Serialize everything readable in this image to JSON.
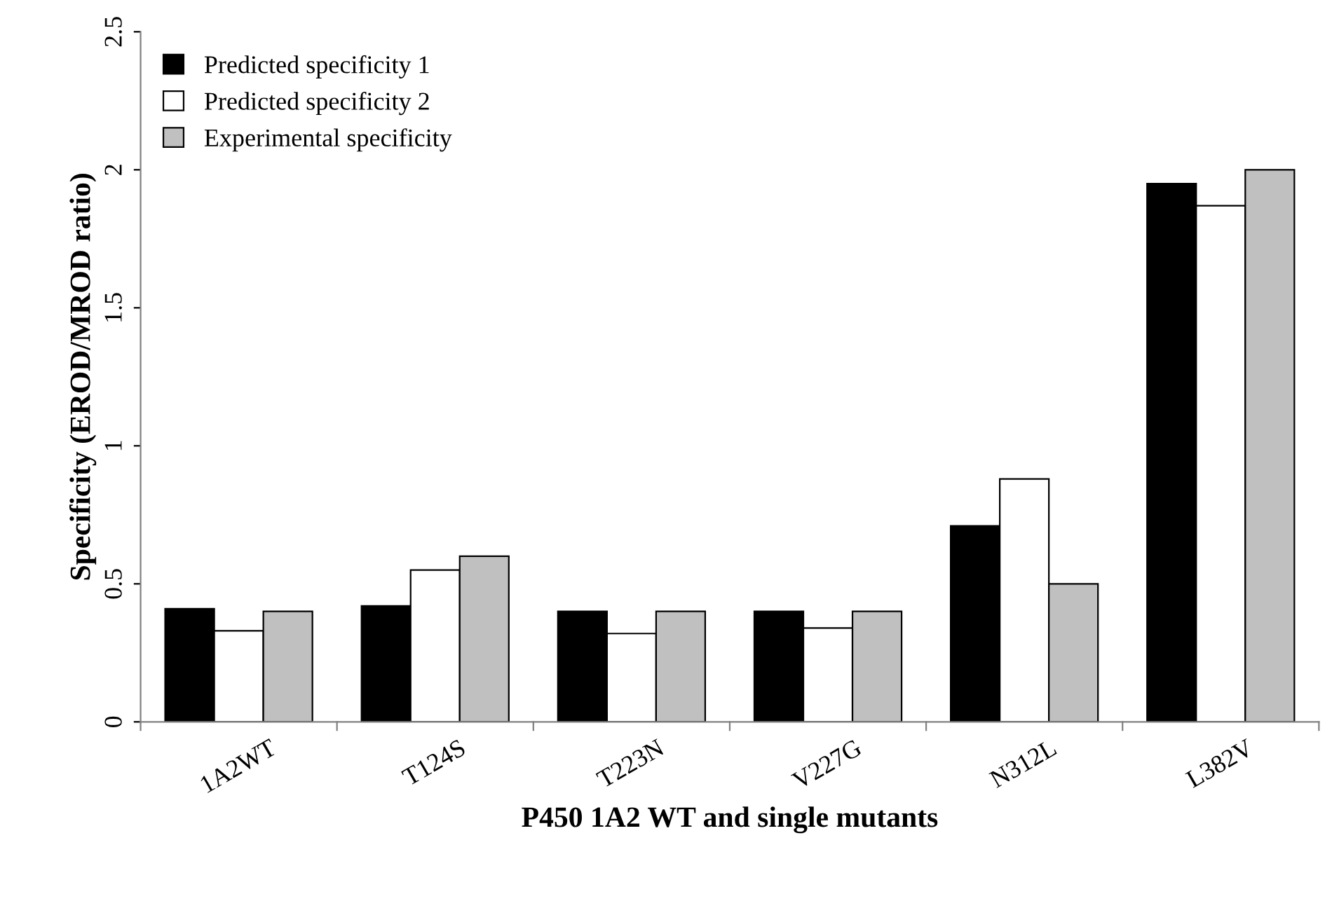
{
  "chart_data": {
    "type": "bar",
    "xlabel": "P450 1A2 WT and single mutants",
    "ylabel": "Specificity (EROD/MROD ratio)",
    "categories": [
      "1A2WT",
      "T124S",
      "T223N",
      "V227G",
      "N312L",
      "L382V"
    ],
    "series": [
      {
        "name": "Predicted specificity 1",
        "color": "#000000",
        "values": [
          0.41,
          0.42,
          0.4,
          0.4,
          0.71,
          1.95
        ]
      },
      {
        "name": "Predicted specificity 2",
        "color": "#ffffff",
        "values": [
          0.33,
          0.55,
          0.32,
          0.34,
          0.88,
          1.87
        ]
      },
      {
        "name": "Experimental specificity",
        "color": "#c0c0c0",
        "values": [
          0.4,
          0.6,
          0.4,
          0.4,
          0.5,
          2.0
        ]
      }
    ],
    "ylim": [
      0,
      2.5
    ],
    "yticks": [
      0,
      0.5,
      1,
      1.5,
      2,
      2.5
    ],
    "grid": false,
    "legend": "top left"
  }
}
